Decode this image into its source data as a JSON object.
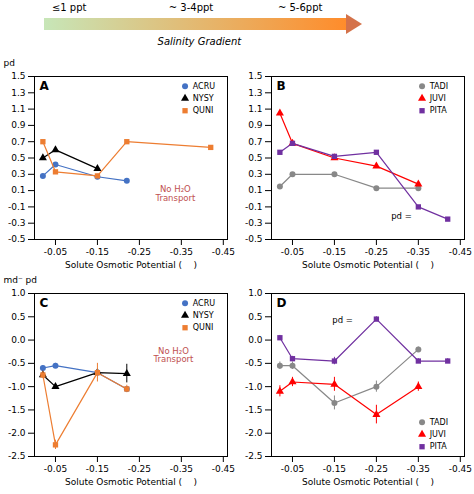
{
  "chart_data": [
    {
      "type": "gradient",
      "categories": [
        "≤1 ppt",
        "~ 3-4ppt",
        "~ 5-6ppt"
      ],
      "annotations": [
        "Salinity Gradient"
      ]
    },
    {
      "type": "line",
      "title": "A",
      "xlabel": "Solute Osmotic Potential (    )",
      "ylabel": "pd",
      "xlim": [
        0.0,
        -0.46
      ],
      "xticks": [
        -0.05,
        -0.15,
        -0.25,
        -0.35,
        -0.45
      ],
      "ylim": [
        -0.5,
        1.5
      ],
      "yticks": [
        -0.5,
        -0.3,
        -0.1,
        0.1,
        0.3,
        0.5,
        0.7,
        0.9,
        1.1,
        1.3,
        1.5
      ],
      "grid": false,
      "legend": "upper right",
      "annotations": [
        "No H₂O\nTransport"
      ],
      "series": [
        {
          "name": "ACRU",
          "color": "#4472C4",
          "marker": "circle",
          "x": [
            -0.02,
            -0.05,
            -0.15,
            -0.22
          ],
          "values": [
            0.28,
            0.42,
            0.27,
            0.22
          ]
        },
        {
          "name": "NYSY",
          "color": "#000000",
          "marker": "triangle",
          "x": [
            -0.02,
            -0.05,
            -0.15
          ],
          "values": [
            0.5,
            0.6,
            0.37
          ]
        },
        {
          "name": "QUNI",
          "color": "#ED7D31",
          "marker": "square",
          "x": [
            -0.02,
            -0.05,
            -0.15,
            -0.22,
            -0.42
          ],
          "values": [
            0.7,
            0.33,
            0.28,
            0.7,
            0.63
          ]
        }
      ]
    },
    {
      "type": "line",
      "title": "B",
      "xlabel": "Solute Osmotic Potential (    )",
      "xlim": [
        0.0,
        -0.46
      ],
      "xticks": [
        -0.05,
        -0.15,
        -0.25,
        -0.35,
        -0.45
      ],
      "ylim": [
        -0.5,
        1.5
      ],
      "yticks": [
        -0.5,
        -0.3,
        -0.1,
        0.1,
        0.3,
        0.5,
        0.7,
        0.9,
        1.1,
        1.3,
        1.5
      ],
      "grid": false,
      "legend": "upper right",
      "annotations": [
        "pd ="
      ],
      "series": [
        {
          "name": "TADI",
          "color": "#888888",
          "marker": "circle",
          "x": [
            -0.02,
            -0.05,
            -0.15,
            -0.25,
            -0.35
          ],
          "values": [
            0.15,
            0.3,
            0.3,
            0.13,
            0.13
          ]
        },
        {
          "name": "JUVI",
          "color": "#FF0000",
          "marker": "triangle",
          "x": [
            -0.02,
            -0.05,
            -0.15,
            -0.25,
            -0.35
          ],
          "values": [
            1.05,
            0.68,
            0.5,
            0.4,
            0.18
          ]
        },
        {
          "name": "PITA",
          "color": "#7030A0",
          "marker": "square",
          "x": [
            -0.02,
            -0.05,
            -0.15,
            -0.25,
            -0.35,
            -0.42
          ],
          "values": [
            0.57,
            0.68,
            0.52,
            0.57,
            -0.1,
            -0.25
          ]
        }
      ]
    },
    {
      "type": "line",
      "title": "C",
      "xlabel": "Solute Osmotic Potential (    )",
      "ylabel": "md⁻ pd",
      "xlim": [
        0.0,
        -0.46
      ],
      "xticks": [
        -0.05,
        -0.15,
        -0.25,
        -0.35,
        -0.45
      ],
      "ylim": [
        -2.5,
        1.0
      ],
      "yticks": [
        -2.5,
        {
          "value": -2.0,
          "label": "-2.0"
        },
        -1.5,
        {
          "value": -1.0,
          "label": "-1.0"
        },
        -0.5,
        {
          "value": 0.0,
          "label": "0.0"
        },
        0.5,
        {
          "value": 1.0,
          "label": "1.0"
        }
      ],
      "grid": false,
      "legend": "upper right",
      "annotations": [
        "No H₂O\nTransport"
      ],
      "series": [
        {
          "name": "ACRU",
          "color": "#4472C4",
          "marker": "circle",
          "x": [
            -0.02,
            -0.05,
            -0.15,
            -0.22
          ],
          "values": [
            -0.6,
            -0.55,
            -0.7,
            -1.05
          ],
          "errors": [
            0.05,
            0.05,
            0.08,
            0.05
          ]
        },
        {
          "name": "NYSY",
          "color": "#000000",
          "marker": "triangle",
          "x": [
            -0.02,
            -0.05,
            -0.15,
            -0.22
          ],
          "values": [
            -0.75,
            -1.0,
            -0.7,
            -0.72
          ],
          "errors": [
            0.05,
            0.05,
            0.05,
            0.2
          ]
        },
        {
          "name": "QUNI",
          "color": "#ED7D31",
          "marker": "square",
          "x": [
            -0.02,
            -0.05,
            -0.15,
            -0.22
          ],
          "values": [
            -0.75,
            -2.25,
            -0.7,
            -1.05
          ],
          "errors": [
            0.08,
            0.1,
            0.2,
            0.08
          ]
        }
      ]
    },
    {
      "type": "line",
      "title": "D",
      "xlabel": "Solute Osmotic Potential (    )",
      "xlim": [
        0.0,
        -0.46
      ],
      "xticks": [
        -0.05,
        -0.15,
        -0.25,
        -0.35,
        -0.45
      ],
      "ylim": [
        -2.5,
        1.0
      ],
      "yticks": [
        -2.5,
        {
          "value": -2.0,
          "label": "-2.0"
        },
        -1.5,
        {
          "value": -1.0,
          "label": "-1.0"
        },
        -0.5,
        {
          "value": 0.0,
          "label": "0.0"
        },
        0.5,
        {
          "value": 1.0,
          "label": "1.0"
        }
      ],
      "grid": false,
      "legend": "lower right",
      "annotations": [
        "pd ="
      ],
      "series": [
        {
          "name": "TADI",
          "color": "#888888",
          "marker": "circle",
          "x": [
            -0.02,
            -0.05,
            -0.15,
            -0.25,
            -0.35
          ],
          "values": [
            -0.55,
            -0.55,
            -1.35,
            -1.0,
            -0.2
          ],
          "errors": [
            0.08,
            0.08,
            0.15,
            0.12,
            0.05
          ]
        },
        {
          "name": "JUVI",
          "color": "#FF0000",
          "marker": "triangle",
          "x": [
            -0.02,
            -0.05,
            -0.15,
            -0.25,
            -0.35
          ],
          "values": [
            -1.1,
            -0.9,
            -0.95,
            -1.6,
            -1.0
          ],
          "errors": [
            0.12,
            0.1,
            0.15,
            0.2,
            0.1
          ]
        },
        {
          "name": "PITA",
          "color": "#7030A0",
          "marker": "square",
          "x": [
            -0.02,
            -0.05,
            -0.15,
            -0.25,
            -0.35,
            -0.42
          ],
          "values": [
            0.05,
            -0.4,
            -0.45,
            0.45,
            -0.45,
            -0.45
          ],
          "errors": [
            0.05,
            0.05,
            0.08,
            0.05,
            0.05,
            0.05
          ]
        }
      ]
    }
  ]
}
